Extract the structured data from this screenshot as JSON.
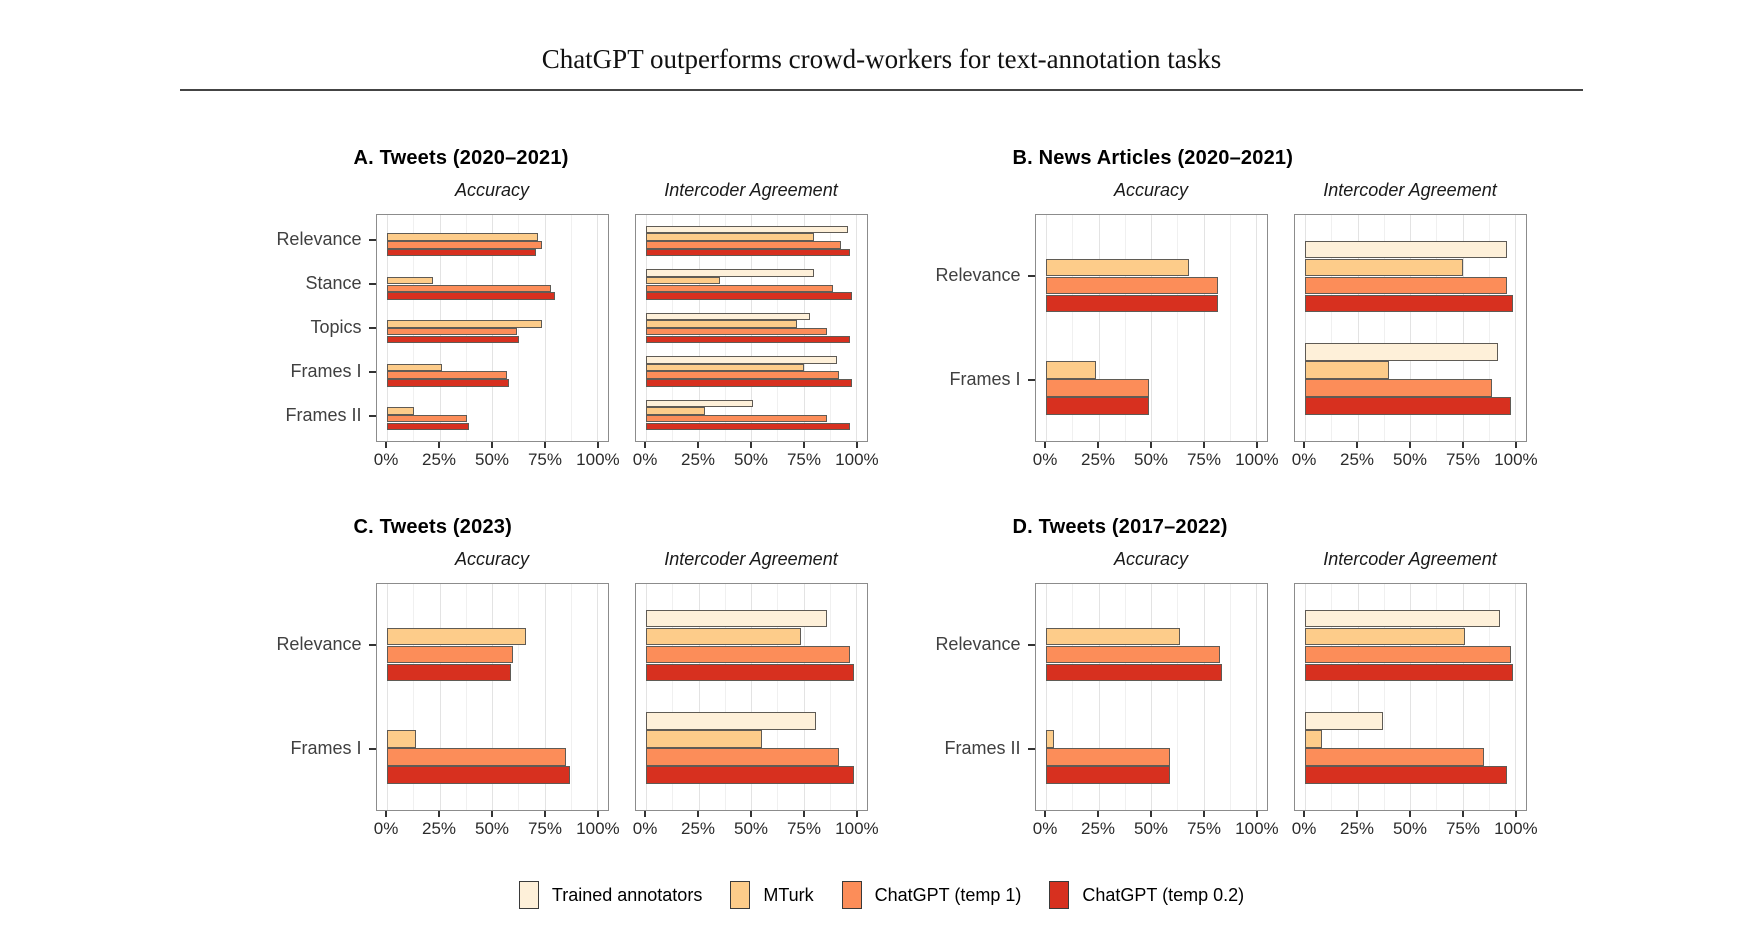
{
  "header": {
    "title": "ChatGPT outperforms crowd-workers for text-annotation tasks"
  },
  "legend": {
    "items": [
      {
        "label": "Trained annotators",
        "color": "#fef0d9"
      },
      {
        "label": "MTurk",
        "color": "#fdcc8a"
      },
      {
        "label": "ChatGPT (temp 1)",
        "color": "#fc8d59"
      },
      {
        "label": "ChatGPT (temp 0.2)",
        "color": "#d7301f"
      }
    ]
  },
  "axis": {
    "tick_labels": [
      "0%",
      "25%",
      "50%",
      "75%",
      "100%"
    ],
    "tick_values": [
      0,
      25,
      50,
      75,
      100
    ],
    "xlim": [
      0,
      100
    ],
    "grid_step": 12.5
  },
  "chart_data": [
    {
      "panel": "A",
      "title": "A. Tweets (2020–2021)",
      "type": "bar",
      "orientation": "horizontal",
      "categories": [
        "Relevance",
        "Stance",
        "Topics",
        "Frames I",
        "Frames II"
      ],
      "facets": [
        {
          "label": "Accuracy",
          "series": [
            {
              "name": "MTurk",
              "values": [
                72,
                22,
                74,
                26,
                13
              ]
            },
            {
              "name": "ChatGPT (temp 1)",
              "values": [
                74,
                78,
                62,
                57,
                38
              ]
            },
            {
              "name": "ChatGPT (temp 0.2)",
              "values": [
                71,
                80,
                63,
                58,
                39
              ]
            }
          ]
        },
        {
          "label": "Intercoder Agreement",
          "series": [
            {
              "name": "Trained annotators",
              "values": [
                96,
                80,
                78,
                91,
                51
              ]
            },
            {
              "name": "MTurk",
              "values": [
                80,
                35,
                72,
                75,
                28
              ]
            },
            {
              "name": "ChatGPT (temp 1)",
              "values": [
                93,
                89,
                86,
                92,
                86
              ]
            },
            {
              "name": "ChatGPT (temp 0.2)",
              "values": [
                97,
                98,
                97,
                98,
                97
              ]
            }
          ]
        }
      ]
    },
    {
      "panel": "B",
      "title": "B. News Articles (2020–2021)",
      "type": "bar",
      "orientation": "horizontal",
      "categories": [
        "Relevance",
        "Frames I"
      ],
      "facets": [
        {
          "label": "Accuracy",
          "series": [
            {
              "name": "MTurk",
              "values": [
                68,
                24
              ]
            },
            {
              "name": "ChatGPT (temp 1)",
              "values": [
                82,
                49
              ]
            },
            {
              "name": "ChatGPT (temp 0.2)",
              "values": [
                82,
                49
              ]
            }
          ]
        },
        {
          "label": "Intercoder Agreement",
          "series": [
            {
              "name": "Trained annotators",
              "values": [
                96,
                92
              ]
            },
            {
              "name": "MTurk",
              "values": [
                75,
                40
              ]
            },
            {
              "name": "ChatGPT (temp 1)",
              "values": [
                96,
                89
              ]
            },
            {
              "name": "ChatGPT (temp 0.2)",
              "values": [
                99,
                98
              ]
            }
          ]
        }
      ]
    },
    {
      "panel": "C",
      "title": "C. Tweets (2023)",
      "type": "bar",
      "orientation": "horizontal",
      "categories": [
        "Relevance",
        "Frames I"
      ],
      "facets": [
        {
          "label": "Accuracy",
          "series": [
            {
              "name": "MTurk",
              "values": [
                66,
                14
              ]
            },
            {
              "name": "ChatGPT (temp 1)",
              "values": [
                60,
                85
              ]
            },
            {
              "name": "ChatGPT (temp 0.2)",
              "values": [
                59,
                87
              ]
            }
          ]
        },
        {
          "label": "Intercoder Agreement",
          "series": [
            {
              "name": "Trained annotators",
              "values": [
                86,
                81
              ]
            },
            {
              "name": "MTurk",
              "values": [
                74,
                55
              ]
            },
            {
              "name": "ChatGPT (temp 1)",
              "values": [
                97,
                92
              ]
            },
            {
              "name": "ChatGPT (temp 0.2)",
              "values": [
                99,
                99
              ]
            }
          ]
        }
      ]
    },
    {
      "panel": "D",
      "title": "D. Tweets (2017–2022)",
      "type": "bar",
      "orientation": "horizontal",
      "categories": [
        "Relevance",
        "Frames II"
      ],
      "facets": [
        {
          "label": "Accuracy",
          "series": [
            {
              "name": "MTurk",
              "values": [
                64,
                4
              ]
            },
            {
              "name": "ChatGPT (temp 1)",
              "values": [
                83,
                59
              ]
            },
            {
              "name": "ChatGPT (temp 0.2)",
              "values": [
                84,
                59
              ]
            }
          ]
        },
        {
          "label": "Intercoder Agreement",
          "series": [
            {
              "name": "Trained annotators",
              "values": [
                93,
                37
              ]
            },
            {
              "name": "MTurk",
              "values": [
                76,
                8
              ]
            },
            {
              "name": "ChatGPT (temp 1)",
              "values": [
                98,
                85
              ]
            },
            {
              "name": "ChatGPT (temp 0.2)",
              "values": [
                99,
                96
              ]
            }
          ]
        }
      ]
    }
  ]
}
